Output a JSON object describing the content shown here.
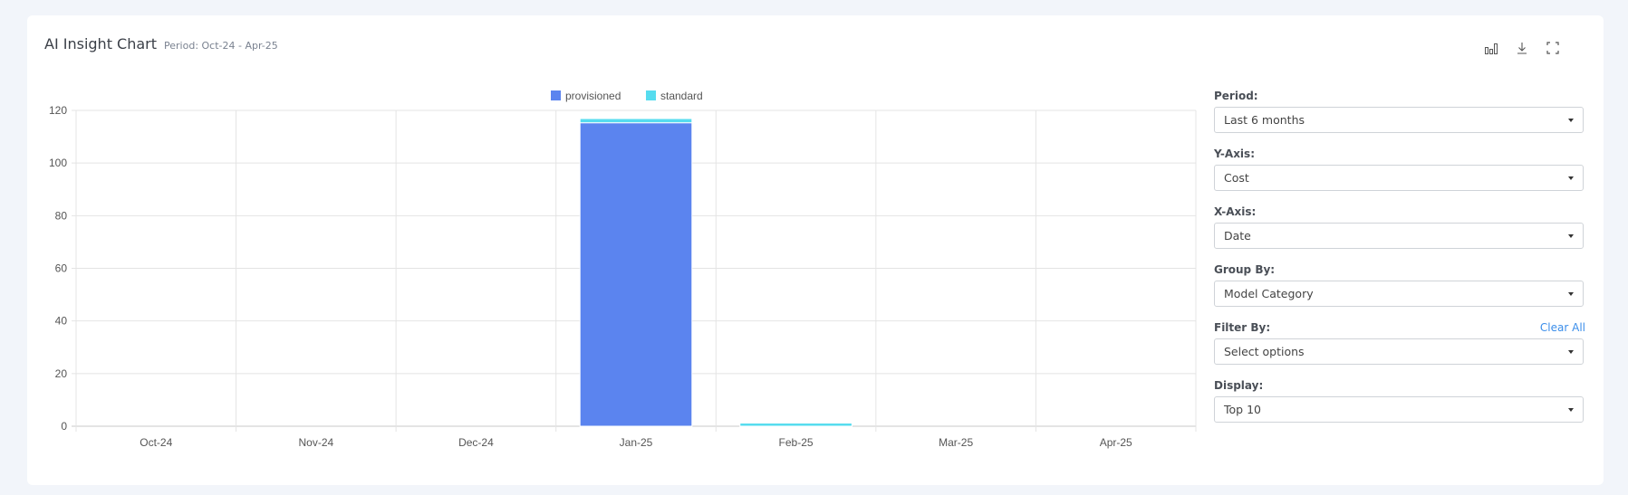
{
  "header": {
    "title": "AI Insight Chart",
    "period": "Period: Oct-24 - Apr-25"
  },
  "toolbar": {
    "icons": [
      "bar-chart-icon",
      "download-icon",
      "fullscreen-icon"
    ]
  },
  "controls": [
    {
      "label": "Period:",
      "value": "Last 6 months"
    },
    {
      "label": "Y-Axis:",
      "value": "Cost"
    },
    {
      "label": "X-Axis:",
      "value": "Date"
    },
    {
      "label": "Group By:",
      "value": "Model Category"
    },
    {
      "label": "Filter By:",
      "value": "Select options",
      "action": "Clear All"
    },
    {
      "label": "Display:",
      "value": "Top 10"
    }
  ],
  "chart_data": {
    "type": "bar",
    "stacked": true,
    "categories": [
      "Oct-24",
      "Nov-24",
      "Dec-24",
      "Jan-25",
      "Feb-25",
      "Mar-25",
      "Apr-25"
    ],
    "series": [
      {
        "name": "provisioned",
        "color": "#5b84ef",
        "values": [
          0,
          0,
          0,
          115.3,
          0,
          0,
          0
        ]
      },
      {
        "name": "standard",
        "color": "#56dcef",
        "values": [
          0,
          0,
          0,
          1.6,
          1.2,
          0,
          0
        ]
      }
    ],
    "ylim": [
      0,
      120
    ],
    "yticks": [
      0,
      20,
      40,
      60,
      80,
      100,
      120
    ],
    "grid": true,
    "legend": "top-center"
  }
}
